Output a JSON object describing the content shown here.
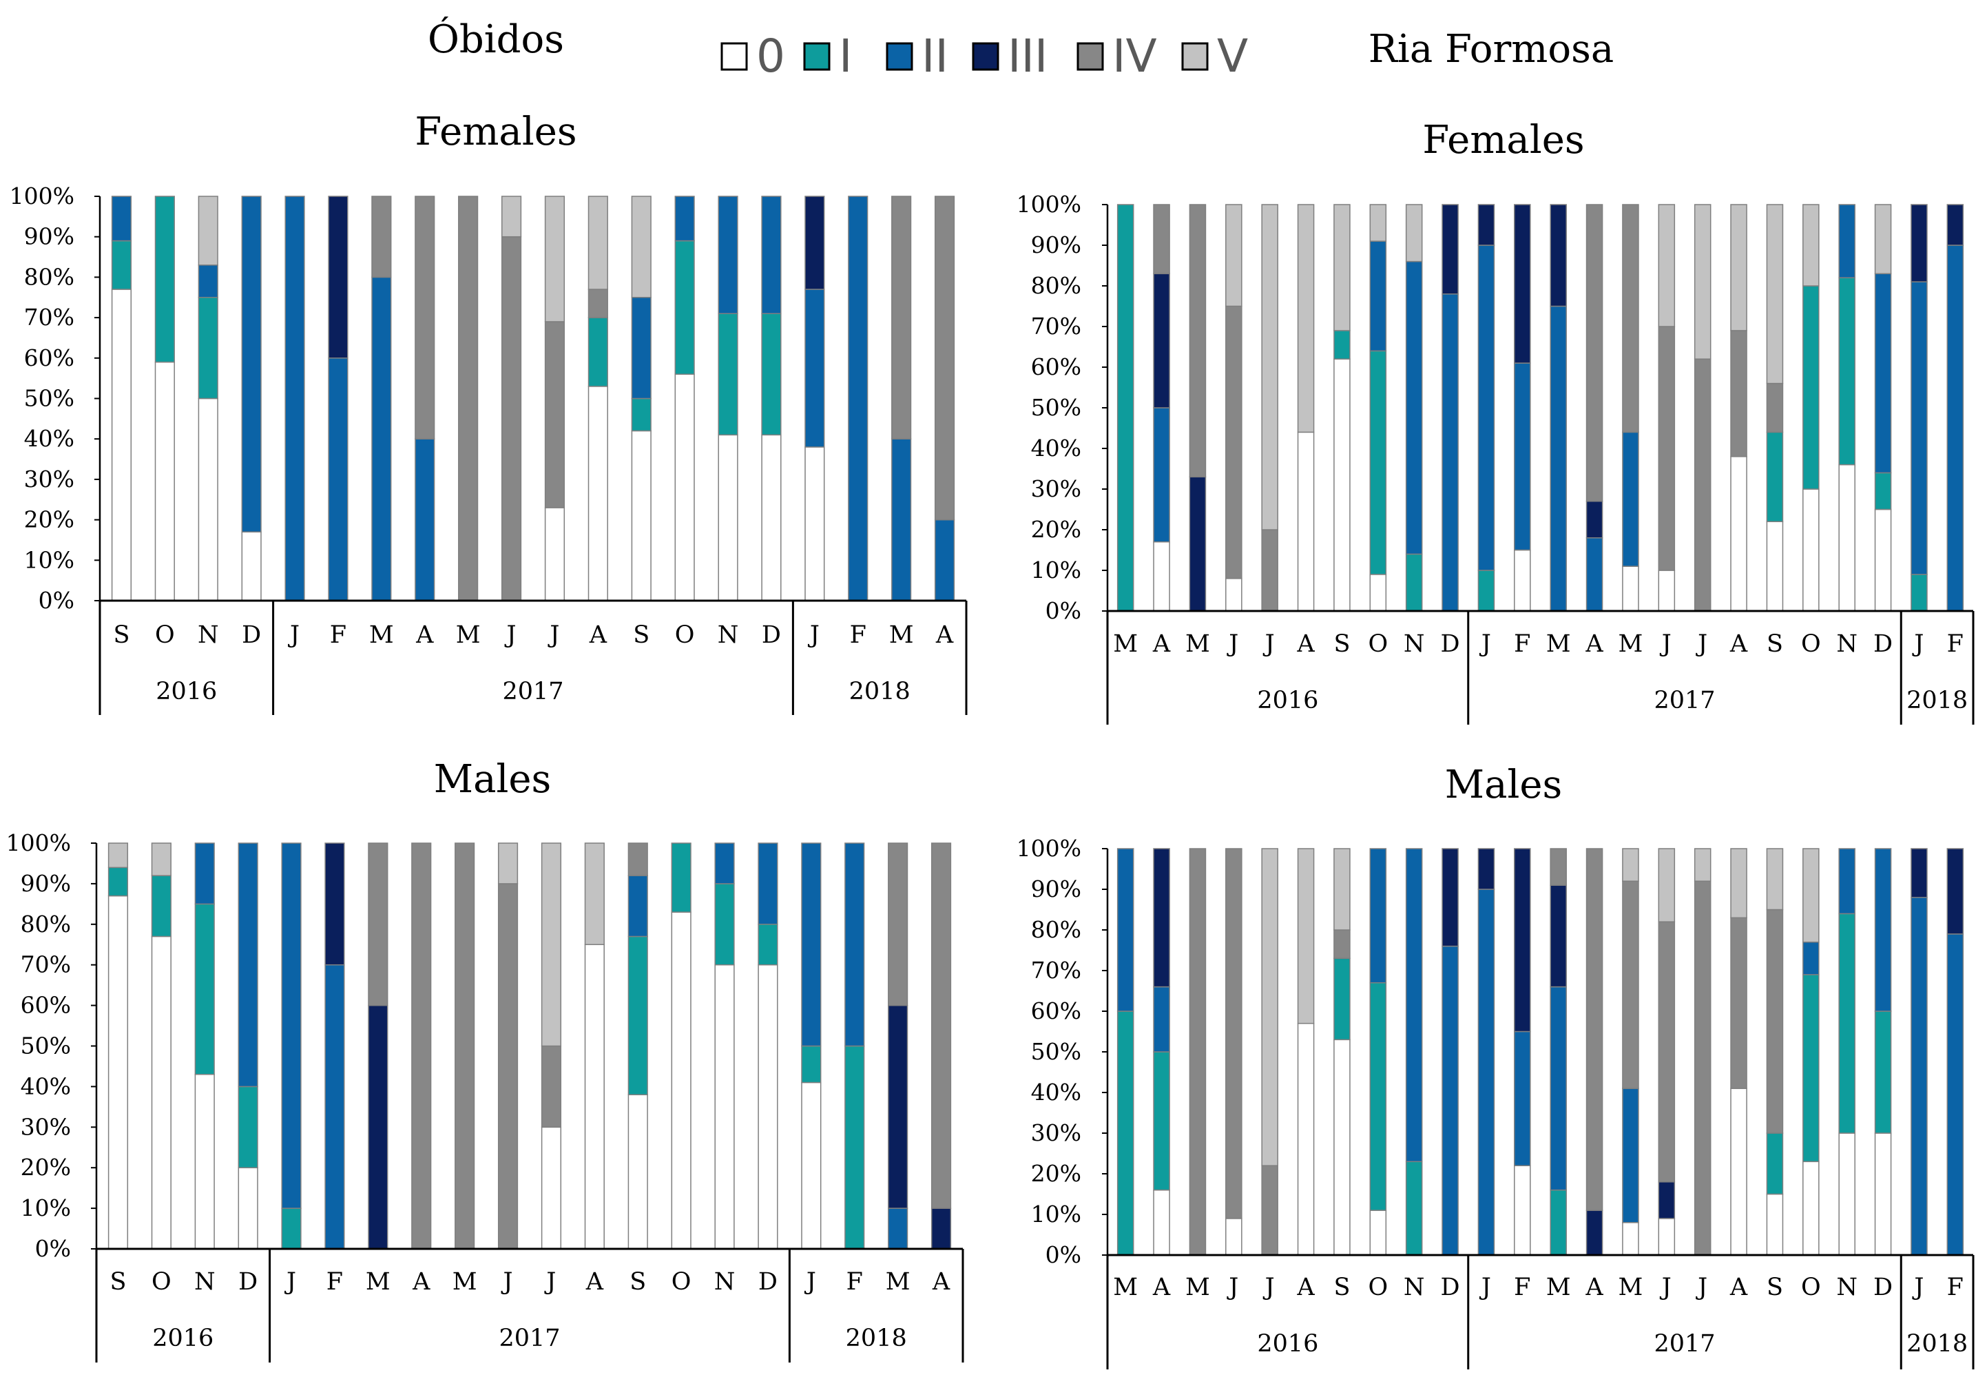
{
  "site_titles": {
    "left": "Óbidos",
    "right": "Ria Formosa"
  },
  "legend": [
    {
      "label": "0",
      "color": "#ffffff"
    },
    {
      "label": "I",
      "color": "#0e9c9c"
    },
    {
      "label": "II",
      "color": "#0b63a6"
    },
    {
      "label": "III",
      "color": "#0a1f5c"
    },
    {
      "label": "IV",
      "color": "#878787"
    },
    {
      "label": "V",
      "color": "#c2c2c2"
    }
  ],
  "chart_data": [
    {
      "type": "bar",
      "stacked": true,
      "site": "Óbidos",
      "title": "Females",
      "ylim": [
        0,
        100
      ],
      "yticks": [
        "0%",
        "10%",
        "20%",
        "30%",
        "40%",
        "50%",
        "60%",
        "70%",
        "80%",
        "90%",
        "100%"
      ],
      "categories": [
        "S",
        "O",
        "N",
        "D",
        "J",
        "F",
        "M",
        "A",
        "M",
        "J",
        "J",
        "A",
        "S",
        "O",
        "N",
        "D",
        "J",
        "F",
        "M",
        "A"
      ],
      "years": [
        {
          "label": "2016",
          "count": 4
        },
        {
          "label": "2017",
          "count": 12
        },
        {
          "label": "2018",
          "count": 4
        }
      ],
      "series": [
        {
          "name": "0",
          "values": [
            77,
            59,
            50,
            17,
            0,
            0,
            0,
            0,
            0,
            0,
            23,
            53,
            42,
            56,
            41,
            41,
            38,
            0,
            0,
            0
          ]
        },
        {
          "name": "I",
          "values": [
            12,
            41,
            25,
            0,
            0,
            0,
            0,
            0,
            0,
            0,
            0,
            17,
            8,
            33,
            30,
            30,
            0,
            0,
            0,
            0
          ]
        },
        {
          "name": "II",
          "values": [
            11,
            0,
            8,
            83,
            100,
            60,
            80,
            40,
            0,
            0,
            0,
            0,
            25,
            11,
            29,
            29,
            39,
            100,
            40,
            20
          ]
        },
        {
          "name": "III",
          "values": [
            0,
            0,
            0,
            0,
            0,
            40,
            0,
            0,
            0,
            0,
            0,
            0,
            0,
            0,
            0,
            0,
            23,
            0,
            0,
            0
          ]
        },
        {
          "name": "IV",
          "values": [
            0,
            0,
            0,
            0,
            0,
            0,
            20,
            60,
            100,
            90,
            46,
            7,
            0,
            0,
            0,
            0,
            0,
            0,
            60,
            80
          ]
        },
        {
          "name": "V",
          "values": [
            0,
            0,
            17,
            0,
            0,
            0,
            0,
            0,
            0,
            10,
            31,
            23,
            25,
            0,
            0,
            0,
            0,
            0,
            0,
            0
          ]
        }
      ]
    },
    {
      "type": "bar",
      "stacked": true,
      "site": "Ria Formosa",
      "title": "Females",
      "ylim": [
        0,
        100
      ],
      "yticks": [
        "0%",
        "10%",
        "20%",
        "30%",
        "40%",
        "50%",
        "60%",
        "70%",
        "80%",
        "90%",
        "100%"
      ],
      "categories": [
        "M",
        "A",
        "M",
        "J",
        "J",
        "A",
        "S",
        "O",
        "N",
        "D",
        "J",
        "F",
        "M",
        "A",
        "M",
        "J",
        "J",
        "A",
        "S",
        "O",
        "N",
        "D",
        "J",
        "F"
      ],
      "years": [
        {
          "label": "2016",
          "count": 10
        },
        {
          "label": "2017",
          "count": 12
        },
        {
          "label": "2018",
          "count": 2
        }
      ],
      "series": [
        {
          "name": "0",
          "values": [
            0,
            17,
            0,
            8,
            0,
            44,
            62,
            9,
            0,
            0,
            0,
            15,
            0,
            0,
            11,
            10,
            0,
            38,
            22,
            30,
            36,
            25,
            0,
            0
          ]
        },
        {
          "name": "I",
          "values": [
            100,
            0,
            0,
            0,
            0,
            0,
            7,
            55,
            14,
            0,
            10,
            0,
            0,
            0,
            0,
            0,
            0,
            0,
            22,
            50,
            46,
            9,
            9,
            0
          ]
        },
        {
          "name": "II",
          "values": [
            0,
            33,
            0,
            0,
            0,
            0,
            0,
            27,
            72,
            78,
            80,
            46,
            75,
            18,
            33,
            0,
            0,
            0,
            0,
            0,
            18,
            49,
            72,
            90
          ]
        },
        {
          "name": "III",
          "values": [
            0,
            33,
            33,
            0,
            0,
            0,
            0,
            0,
            0,
            22,
            10,
            39,
            25,
            9,
            0,
            0,
            0,
            0,
            0,
            0,
            0,
            0,
            19,
            10
          ]
        },
        {
          "name": "IV",
          "values": [
            0,
            17,
            67,
            67,
            20,
            0,
            0,
            0,
            0,
            0,
            0,
            0,
            0,
            73,
            56,
            60,
            62,
            31,
            12,
            0,
            0,
            0,
            0,
            0
          ]
        },
        {
          "name": "V",
          "values": [
            0,
            0,
            0,
            25,
            80,
            56,
            31,
            9,
            14,
            0,
            0,
            0,
            0,
            0,
            0,
            30,
            38,
            31,
            44,
            20,
            0,
            17,
            0,
            0
          ]
        }
      ]
    },
    {
      "type": "bar",
      "stacked": true,
      "site": "Óbidos",
      "title": "Males",
      "ylim": [
        0,
        100
      ],
      "yticks": [
        "0%",
        "10%",
        "20%",
        "30%",
        "40%",
        "50%",
        "60%",
        "70%",
        "80%",
        "90%",
        "100%"
      ],
      "categories": [
        "S",
        "O",
        "N",
        "D",
        "J",
        "F",
        "M",
        "A",
        "M",
        "J",
        "J",
        "A",
        "S",
        "O",
        "N",
        "D",
        "J",
        "F",
        "M",
        "A"
      ],
      "years": [
        {
          "label": "2016",
          "count": 4
        },
        {
          "label": "2017",
          "count": 12
        },
        {
          "label": "2018",
          "count": 4
        }
      ],
      "series": [
        {
          "name": "0",
          "values": [
            87,
            77,
            43,
            20,
            0,
            0,
            0,
            0,
            0,
            0,
            30,
            75,
            38,
            83,
            70,
            70,
            41,
            0,
            0,
            0
          ]
        },
        {
          "name": "I",
          "values": [
            7,
            15,
            42,
            20,
            10,
            0,
            0,
            0,
            0,
            0,
            0,
            0,
            39,
            17,
            20,
            10,
            9,
            50,
            0,
            0
          ]
        },
        {
          "name": "II",
          "values": [
            0,
            0,
            15,
            60,
            90,
            70,
            0,
            0,
            0,
            0,
            0,
            0,
            15,
            0,
            10,
            20,
            50,
            50,
            10,
            0
          ]
        },
        {
          "name": "III",
          "values": [
            0,
            0,
            0,
            0,
            0,
            30,
            60,
            0,
            0,
            0,
            0,
            0,
            0,
            0,
            0,
            0,
            0,
            0,
            50,
            10
          ]
        },
        {
          "name": "IV",
          "values": [
            0,
            0,
            0,
            0,
            0,
            0,
            40,
            100,
            100,
            90,
            20,
            0,
            8,
            0,
            0,
            0,
            0,
            0,
            40,
            90
          ]
        },
        {
          "name": "V",
          "values": [
            6,
            8,
            0,
            0,
            0,
            0,
            0,
            0,
            0,
            10,
            50,
            25,
            0,
            0,
            0,
            0,
            0,
            0,
            0,
            0
          ]
        }
      ]
    },
    {
      "type": "bar",
      "stacked": true,
      "site": "Ria Formosa",
      "title": "Males",
      "ylim": [
        0,
        100
      ],
      "yticks": [
        "0%",
        "10%",
        "20%",
        "30%",
        "40%",
        "50%",
        "60%",
        "70%",
        "80%",
        "90%",
        "100%"
      ],
      "categories": [
        "M",
        "A",
        "M",
        "J",
        "J",
        "A",
        "S",
        "O",
        "N",
        "D",
        "J",
        "F",
        "M",
        "A",
        "M",
        "J",
        "J",
        "A",
        "S",
        "O",
        "N",
        "D",
        "J",
        "F"
      ],
      "years": [
        {
          "label": "2016",
          "count": 10
        },
        {
          "label": "2017",
          "count": 12
        },
        {
          "label": "2018",
          "count": 2
        }
      ],
      "series": [
        {
          "name": "0",
          "values": [
            0,
            16,
            0,
            9,
            0,
            57,
            53,
            11,
            0,
            0,
            0,
            22,
            0,
            0,
            8,
            9,
            0,
            41,
            15,
            23,
            30,
            30,
            0,
            0
          ]
        },
        {
          "name": "I",
          "values": [
            60,
            34,
            0,
            0,
            0,
            0,
            20,
            56,
            23,
            0,
            0,
            0,
            16,
            0,
            0,
            0,
            0,
            0,
            15,
            46,
            54,
            30,
            0,
            0
          ]
        },
        {
          "name": "II",
          "values": [
            40,
            16,
            0,
            0,
            0,
            0,
            0,
            33,
            77,
            76,
            90,
            33,
            50,
            0,
            33,
            0,
            0,
            0,
            0,
            8,
            16,
            40,
            88,
            79
          ]
        },
        {
          "name": "III",
          "values": [
            0,
            34,
            0,
            0,
            0,
            0,
            0,
            0,
            0,
            24,
            10,
            45,
            25,
            11,
            0,
            9,
            0,
            0,
            0,
            0,
            0,
            0,
            12,
            21
          ]
        },
        {
          "name": "IV",
          "values": [
            0,
            0,
            100,
            91,
            22,
            0,
            7,
            0,
            0,
            0,
            0,
            0,
            9,
            89,
            51,
            64,
            92,
            42,
            55,
            0,
            0,
            0,
            0,
            0
          ]
        },
        {
          "name": "V",
          "values": [
            0,
            0,
            0,
            0,
            78,
            43,
            20,
            0,
            0,
            0,
            0,
            0,
            0,
            0,
            8,
            18,
            8,
            17,
            15,
            23,
            0,
            0,
            0,
            0
          ]
        }
      ]
    }
  ]
}
